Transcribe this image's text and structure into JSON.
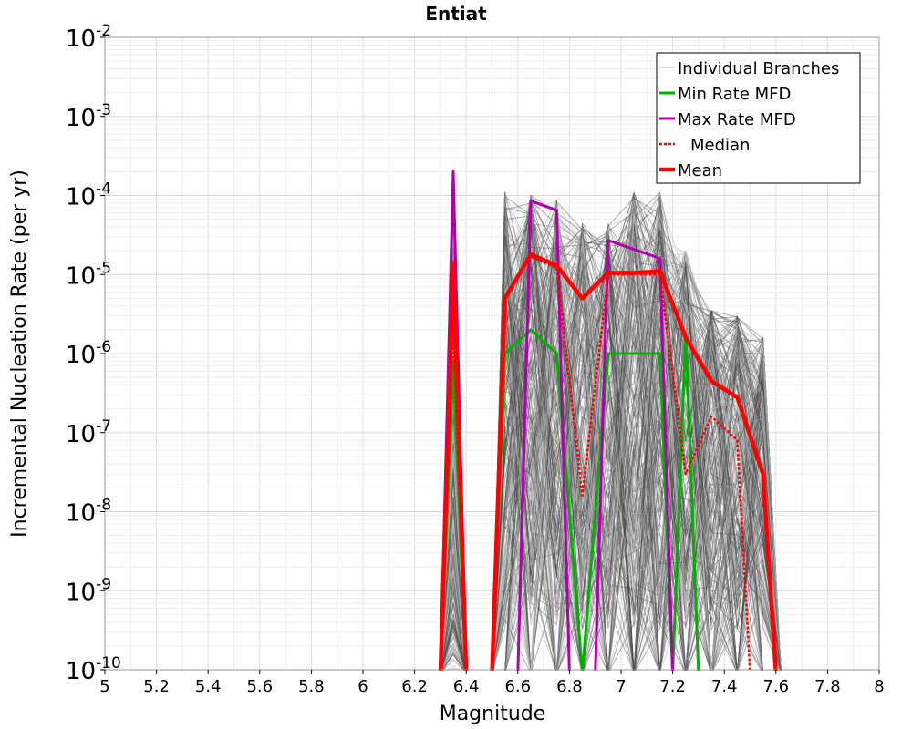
{
  "chart_data": {
    "type": "line",
    "title": "Entiat",
    "xlabel": "Magnitude",
    "ylabel": "Incremental Nucleation Rate (per yr)",
    "x_scale": "linear",
    "y_scale": "log",
    "xlim": [
      5,
      8
    ],
    "ylim": [
      1e-10,
      0.01
    ],
    "x_ticks": [
      "5",
      "5.2",
      "5.4",
      "5.6",
      "5.8",
      "6",
      "6.2",
      "6.4",
      "6.6",
      "6.8",
      "7",
      "7.2",
      "7.4",
      "7.6",
      "7.8",
      "8"
    ],
    "y_tick_exponents": [
      "-10",
      "-9",
      "-8",
      "-7",
      "-6",
      "-5",
      "-4",
      "-3",
      "-2"
    ],
    "y_tick_base": "10",
    "grid": true,
    "legend_position": "top-right",
    "colors": {
      "branches": "#4d4d4d",
      "branches_light": "#b8b8b8",
      "min": "#00b000",
      "max": "#b000b0",
      "median": "#ff0000",
      "mean": "#ff0000"
    },
    "legend": [
      {
        "key": "branches",
        "label": "Individual Branches"
      },
      {
        "key": "min",
        "label": "Min Rate MFD"
      },
      {
        "key": "max",
        "label": "Max Rate MFD"
      },
      {
        "key": "median",
        "label": "Median"
      },
      {
        "key": "mean",
        "label": "Mean"
      }
    ],
    "series": [
      {
        "name": "Min Rate MFD",
        "key": "min",
        "x": [
          6.3,
          6.35,
          6.4,
          6.5,
          6.55,
          6.65,
          6.75,
          6.85,
          6.95,
          7.05,
          7.15,
          7.2,
          7.25,
          7.3
        ],
        "y": [
          1e-10,
          8e-07,
          1e-10,
          1e-10,
          1e-06,
          2e-06,
          1e-06,
          1e-10,
          1e-06,
          1e-06,
          1e-06,
          1e-10,
          1.8e-06,
          1e-10
        ]
      },
      {
        "name": "Max Rate MFD",
        "key": "max",
        "x": [
          6.3,
          6.35,
          6.4,
          6.5,
          6.55,
          6.6,
          6.65,
          6.75,
          6.8,
          6.9,
          6.95,
          7.15,
          7.2
        ],
        "y": [
          1e-10,
          0.0002,
          1e-10,
          1e-10,
          1e-10,
          1e-10,
          8.5e-05,
          6.5e-05,
          1e-10,
          1e-10,
          2.7e-05,
          1.6e-05,
          1e-10
        ]
      },
      {
        "name": "Median",
        "key": "median",
        "x": [
          6.3,
          6.35,
          6.4,
          6.5,
          6.55,
          6.65,
          6.75,
          6.85,
          6.95,
          7.05,
          7.15,
          7.25,
          7.35,
          7.45,
          7.5
        ],
        "y": [
          1e-10,
          2e-06,
          1e-10,
          1e-10,
          5e-06,
          1.7e-05,
          1.2e-05,
          1.6e-08,
          1e-05,
          1e-05,
          1e-05,
          3e-08,
          1.6e-07,
          8e-08,
          1e-10
        ]
      },
      {
        "name": "Mean",
        "key": "mean",
        "x": [
          6.3,
          6.35,
          6.4,
          6.5,
          6.55,
          6.65,
          6.75,
          6.85,
          6.95,
          7.05,
          7.15,
          7.25,
          7.35,
          7.45,
          7.55,
          7.6
        ],
        "y": [
          1e-10,
          1.4e-05,
          1e-10,
          1e-10,
          5e-06,
          1.8e-05,
          1.3e-05,
          5e-06,
          1.05e-05,
          1.05e-05,
          1.1e-05,
          1.6e-06,
          4.5e-07,
          2.8e-07,
          3e-08,
          1e-10
        ]
      }
    ],
    "branch_ensemble": {
      "description_count": 220,
      "x_nodes": [
        6.35,
        6.55,
        6.65,
        6.75,
        6.85,
        6.95,
        7.05,
        7.15,
        7.25,
        7.35,
        7.45,
        7.55
      ],
      "upper_envelope": [
        0.0002,
        0.00011,
        0.0001,
        9e-05,
        4.5e-05,
        4.5e-05,
        0.00011,
        0.00011,
        2e-05,
        3.5e-06,
        3e-06,
        1.6e-06
      ]
    }
  }
}
